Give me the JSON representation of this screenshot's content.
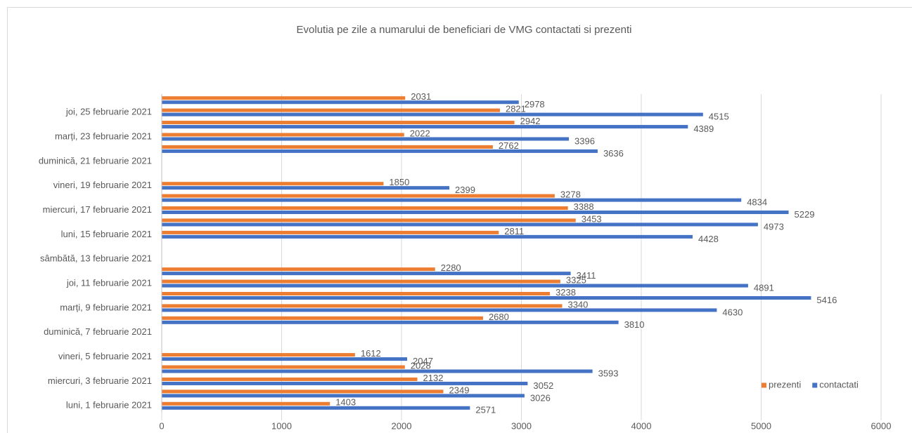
{
  "chart_data": {
    "type": "bar",
    "orientation": "horizontal",
    "title": "Evolutia pe zile a numarului de beneficiari de VMG contactati si prezenti",
    "categories": [
      "luni, 1 februarie 2021",
      null,
      "miercuri, 3 februarie 2021",
      null,
      "vineri, 5 februarie 2021",
      null,
      "duminică, 7 februarie 2021",
      null,
      "marți, 9 februarie 2021",
      null,
      "joi, 11 februarie 2021",
      null,
      "sâmbătă, 13 februarie 2021",
      null,
      "luni, 15 februarie 2021",
      null,
      "miercuri, 17 februarie 2021",
      null,
      "vineri, 19 februarie 2021",
      null,
      "duminică, 21 februarie 2021",
      null,
      "marți, 23 februarie 2021",
      null,
      "joi, 25 februarie 2021",
      null
    ],
    "series": [
      {
        "name": "prezenti",
        "color": "#ed7d31",
        "values": [
          1403,
          2349,
          2132,
          2028,
          1612,
          null,
          null,
          2680,
          3340,
          3238,
          3325,
          2280,
          null,
          null,
          2811,
          3453,
          3388,
          3278,
          1850,
          null,
          null,
          2762,
          2022,
          2942,
          2821,
          2031
        ]
      },
      {
        "name": "contactati",
        "color": "#4472c4",
        "values": [
          2571,
          3026,
          3052,
          3593,
          2047,
          null,
          null,
          3810,
          4630,
          5416,
          4891,
          3411,
          null,
          null,
          4428,
          4973,
          5229,
          4834,
          2399,
          null,
          null,
          3636,
          3396,
          4389,
          4515,
          2978
        ]
      }
    ],
    "xlim": [
      0,
      6000
    ],
    "xticks": [
      0,
      1000,
      2000,
      3000,
      4000,
      5000,
      6000
    ],
    "grid": true,
    "legend": "bottom-right"
  }
}
